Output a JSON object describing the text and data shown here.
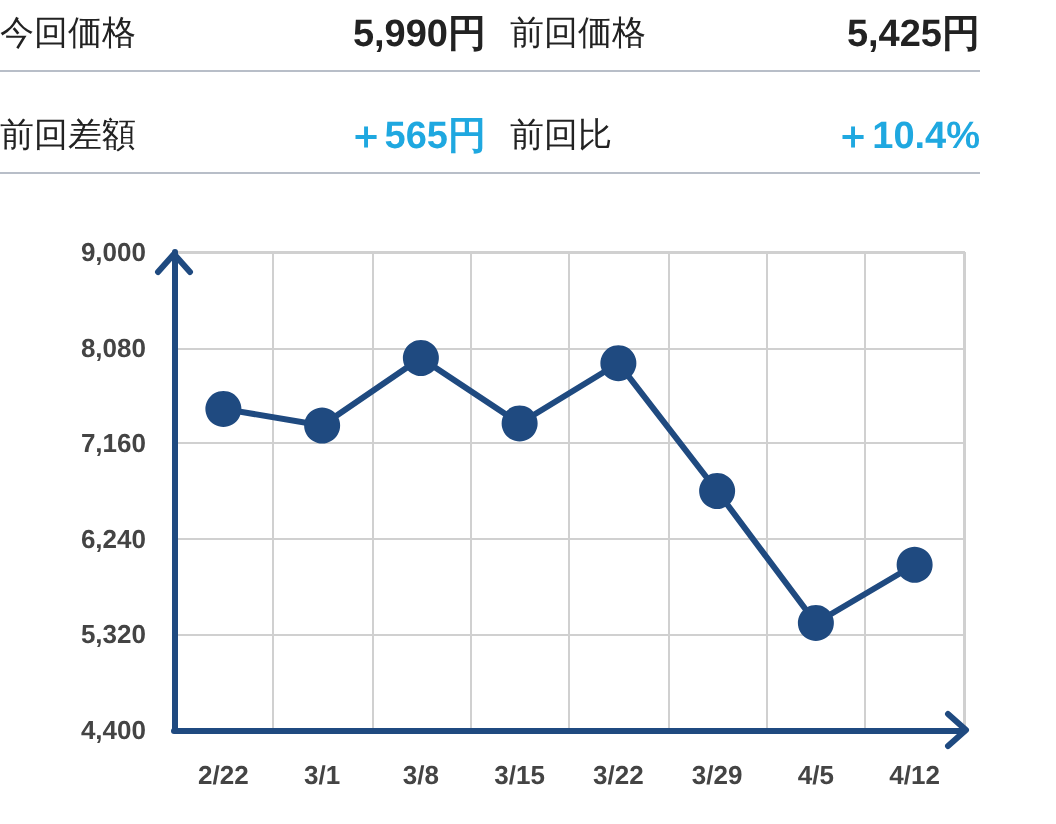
{
  "chart_data": {
    "type": "line",
    "annotations": [
      "今回価格",
      "5,990円",
      "前回価格",
      "5,425円",
      "前回差額",
      "＋565円",
      "前回比",
      "＋10.4%"
    ],
    "categories": [
      "2/22",
      "3/1",
      "3/8",
      "3/15",
      "3/22",
      "3/29",
      "4/5",
      "4/12"
    ],
    "series": [
      {
        "color": "#1f4a80",
        "values": [
          7490,
          7330,
          7980,
          7350,
          7930,
          6700,
          5430,
          5990
        ]
      }
    ],
    "ylim": [
      4400,
      9000
    ],
    "yticks": [
      {
        "value": 4400,
        "label": "4,400"
      },
      {
        "value": 5320,
        "label": "5,320"
      },
      {
        "value": 6240,
        "label": "6,240"
      },
      {
        "value": 7160,
        "label": "7,160"
      },
      {
        "value": 8080,
        "label": "8,080"
      },
      {
        "value": 9000,
        "label": "9,000"
      }
    ],
    "grid": true,
    "marker": "circle",
    "line_style": "solid"
  }
}
